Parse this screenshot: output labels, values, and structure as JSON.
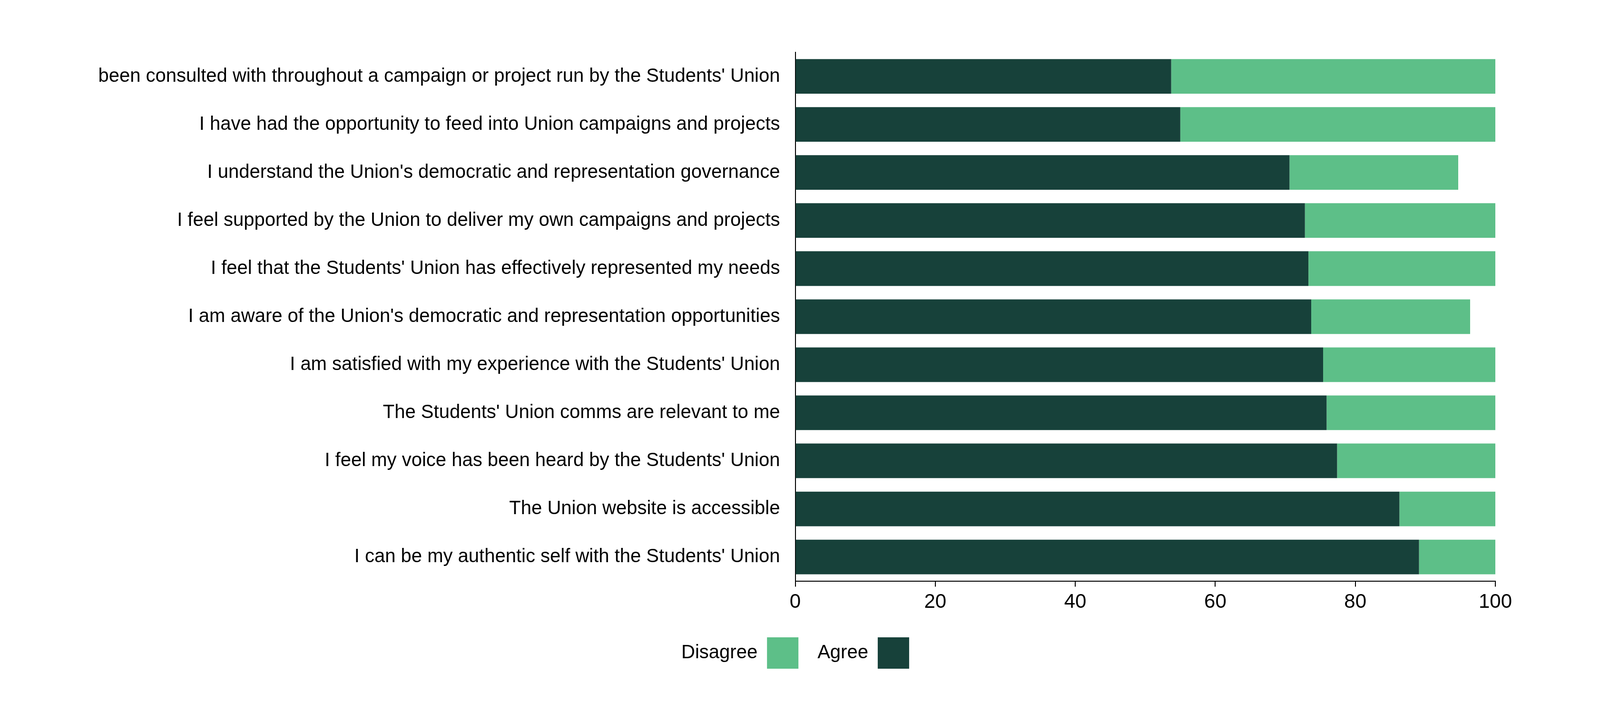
{
  "chart_data": {
    "type": "bar",
    "orientation": "horizontal",
    "stacked": true,
    "categories": [
      "I have been consulted with throughout a campaign or project run by the Students' Union",
      "I have had the opportunity to feed into Union campaigns and projects",
      "I understand the Union's democratic and representation governance",
      "I feel supported by the Union to deliver my own campaigns and projects",
      "I feel that the Students' Union has effectively represented my needs",
      "I am aware of the Union's democratic and representation opportunities",
      "I am satisfied with my experience with the Students' Union",
      "The Students' Union comms are relevant to me",
      "I feel my voice has been heard by the Students' Union",
      "The Union website is accessible",
      "I can be my authentic self with the Students' Union"
    ],
    "series": [
      {
        "name": "Agree",
        "color": "#17413a",
        "values": [
          53.7,
          55.0,
          70.6,
          72.8,
          73.3,
          73.7,
          75.4,
          75.9,
          77.4,
          86.3,
          89.1
        ]
      },
      {
        "name": "Disagree",
        "color": "#5dbf88",
        "values": [
          46.3,
          45.0,
          24.1,
          27.2,
          26.7,
          22.7,
          24.6,
          24.1,
          22.6,
          13.7,
          10.9
        ]
      }
    ],
    "xlim": [
      0,
      100
    ],
    "xticks": [
      0,
      20,
      40,
      60,
      80,
      100
    ],
    "grid": false,
    "legend": "bottom"
  }
}
